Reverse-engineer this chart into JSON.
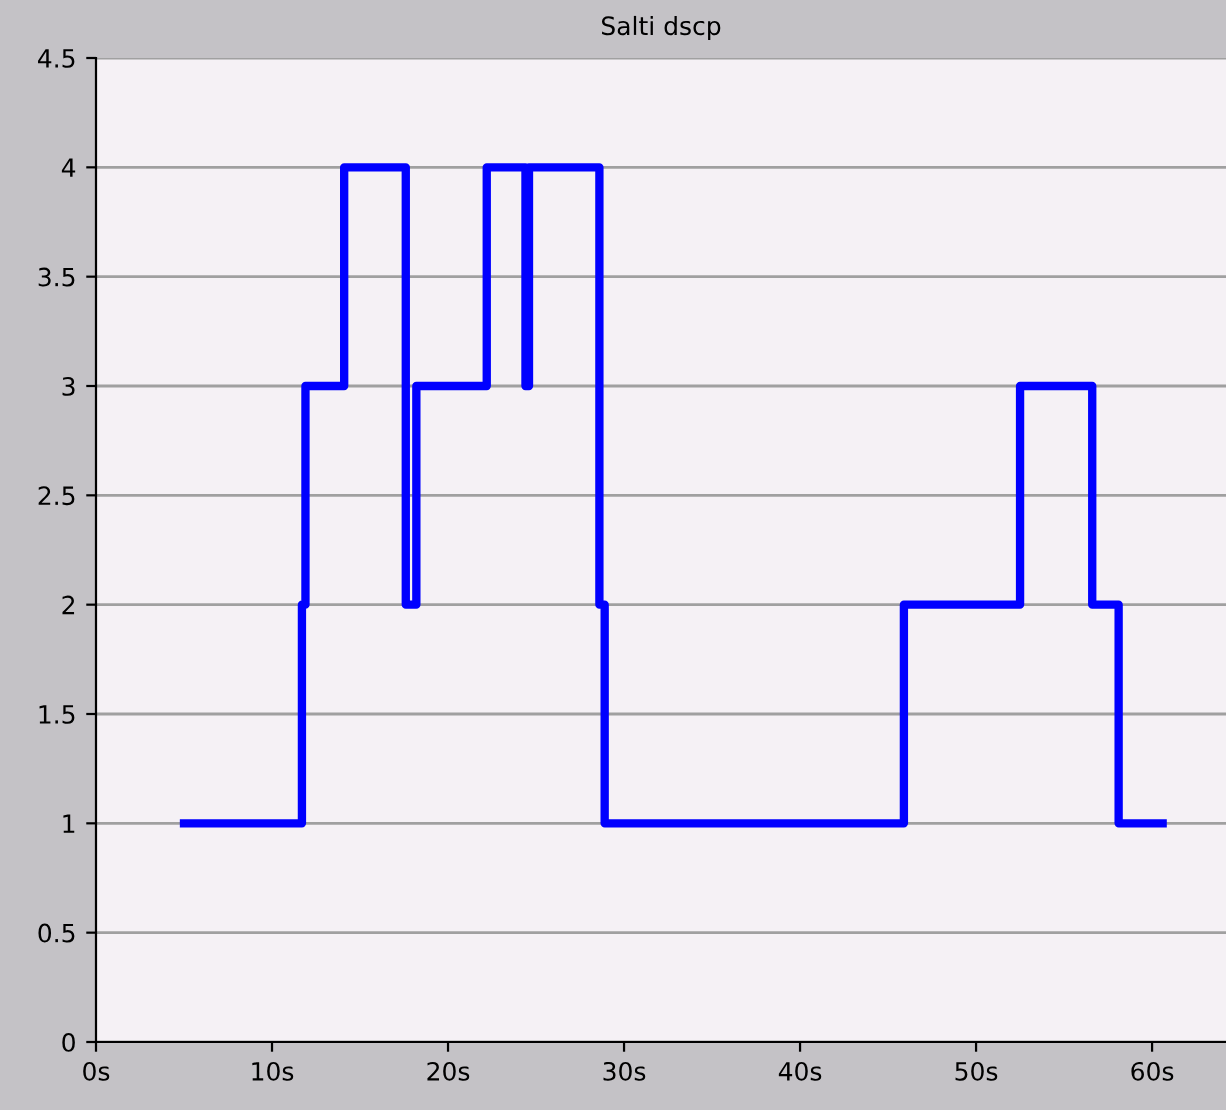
{
  "chart_data": {
    "type": "step",
    "title": "Salti dscp",
    "x": [
      5.0,
      11.7,
      11.9,
      14.1,
      17.6,
      18.2,
      22.2,
      24.4,
      24.6,
      28.6,
      28.9,
      45.9,
      52.5,
      56.6,
      58.1,
      60.6
    ],
    "series": [
      {
        "color": "#0000ff",
        "values": [
          1,
          2,
          3,
          4,
          2,
          3,
          4,
          3,
          4,
          2,
          1,
          2,
          3,
          2,
          1,
          1
        ]
      }
    ],
    "xlim": [
      0,
      64.2
    ],
    "xticks": [
      {
        "value": 0,
        "label": "0s"
      },
      {
        "value": 10,
        "label": "10s"
      },
      {
        "value": 20,
        "label": "20s"
      },
      {
        "value": 30,
        "label": "30s"
      },
      {
        "value": 40,
        "label": "40s"
      },
      {
        "value": 50,
        "label": "50s"
      },
      {
        "value": 60,
        "label": "60s"
      }
    ],
    "ylim": [
      0,
      4.5
    ],
    "yticks": [
      0,
      0.5,
      1,
      1.5,
      2,
      2.5,
      3,
      3.5,
      4,
      4.5
    ],
    "grid": "y",
    "marker": "none",
    "line_style": "solid"
  }
}
